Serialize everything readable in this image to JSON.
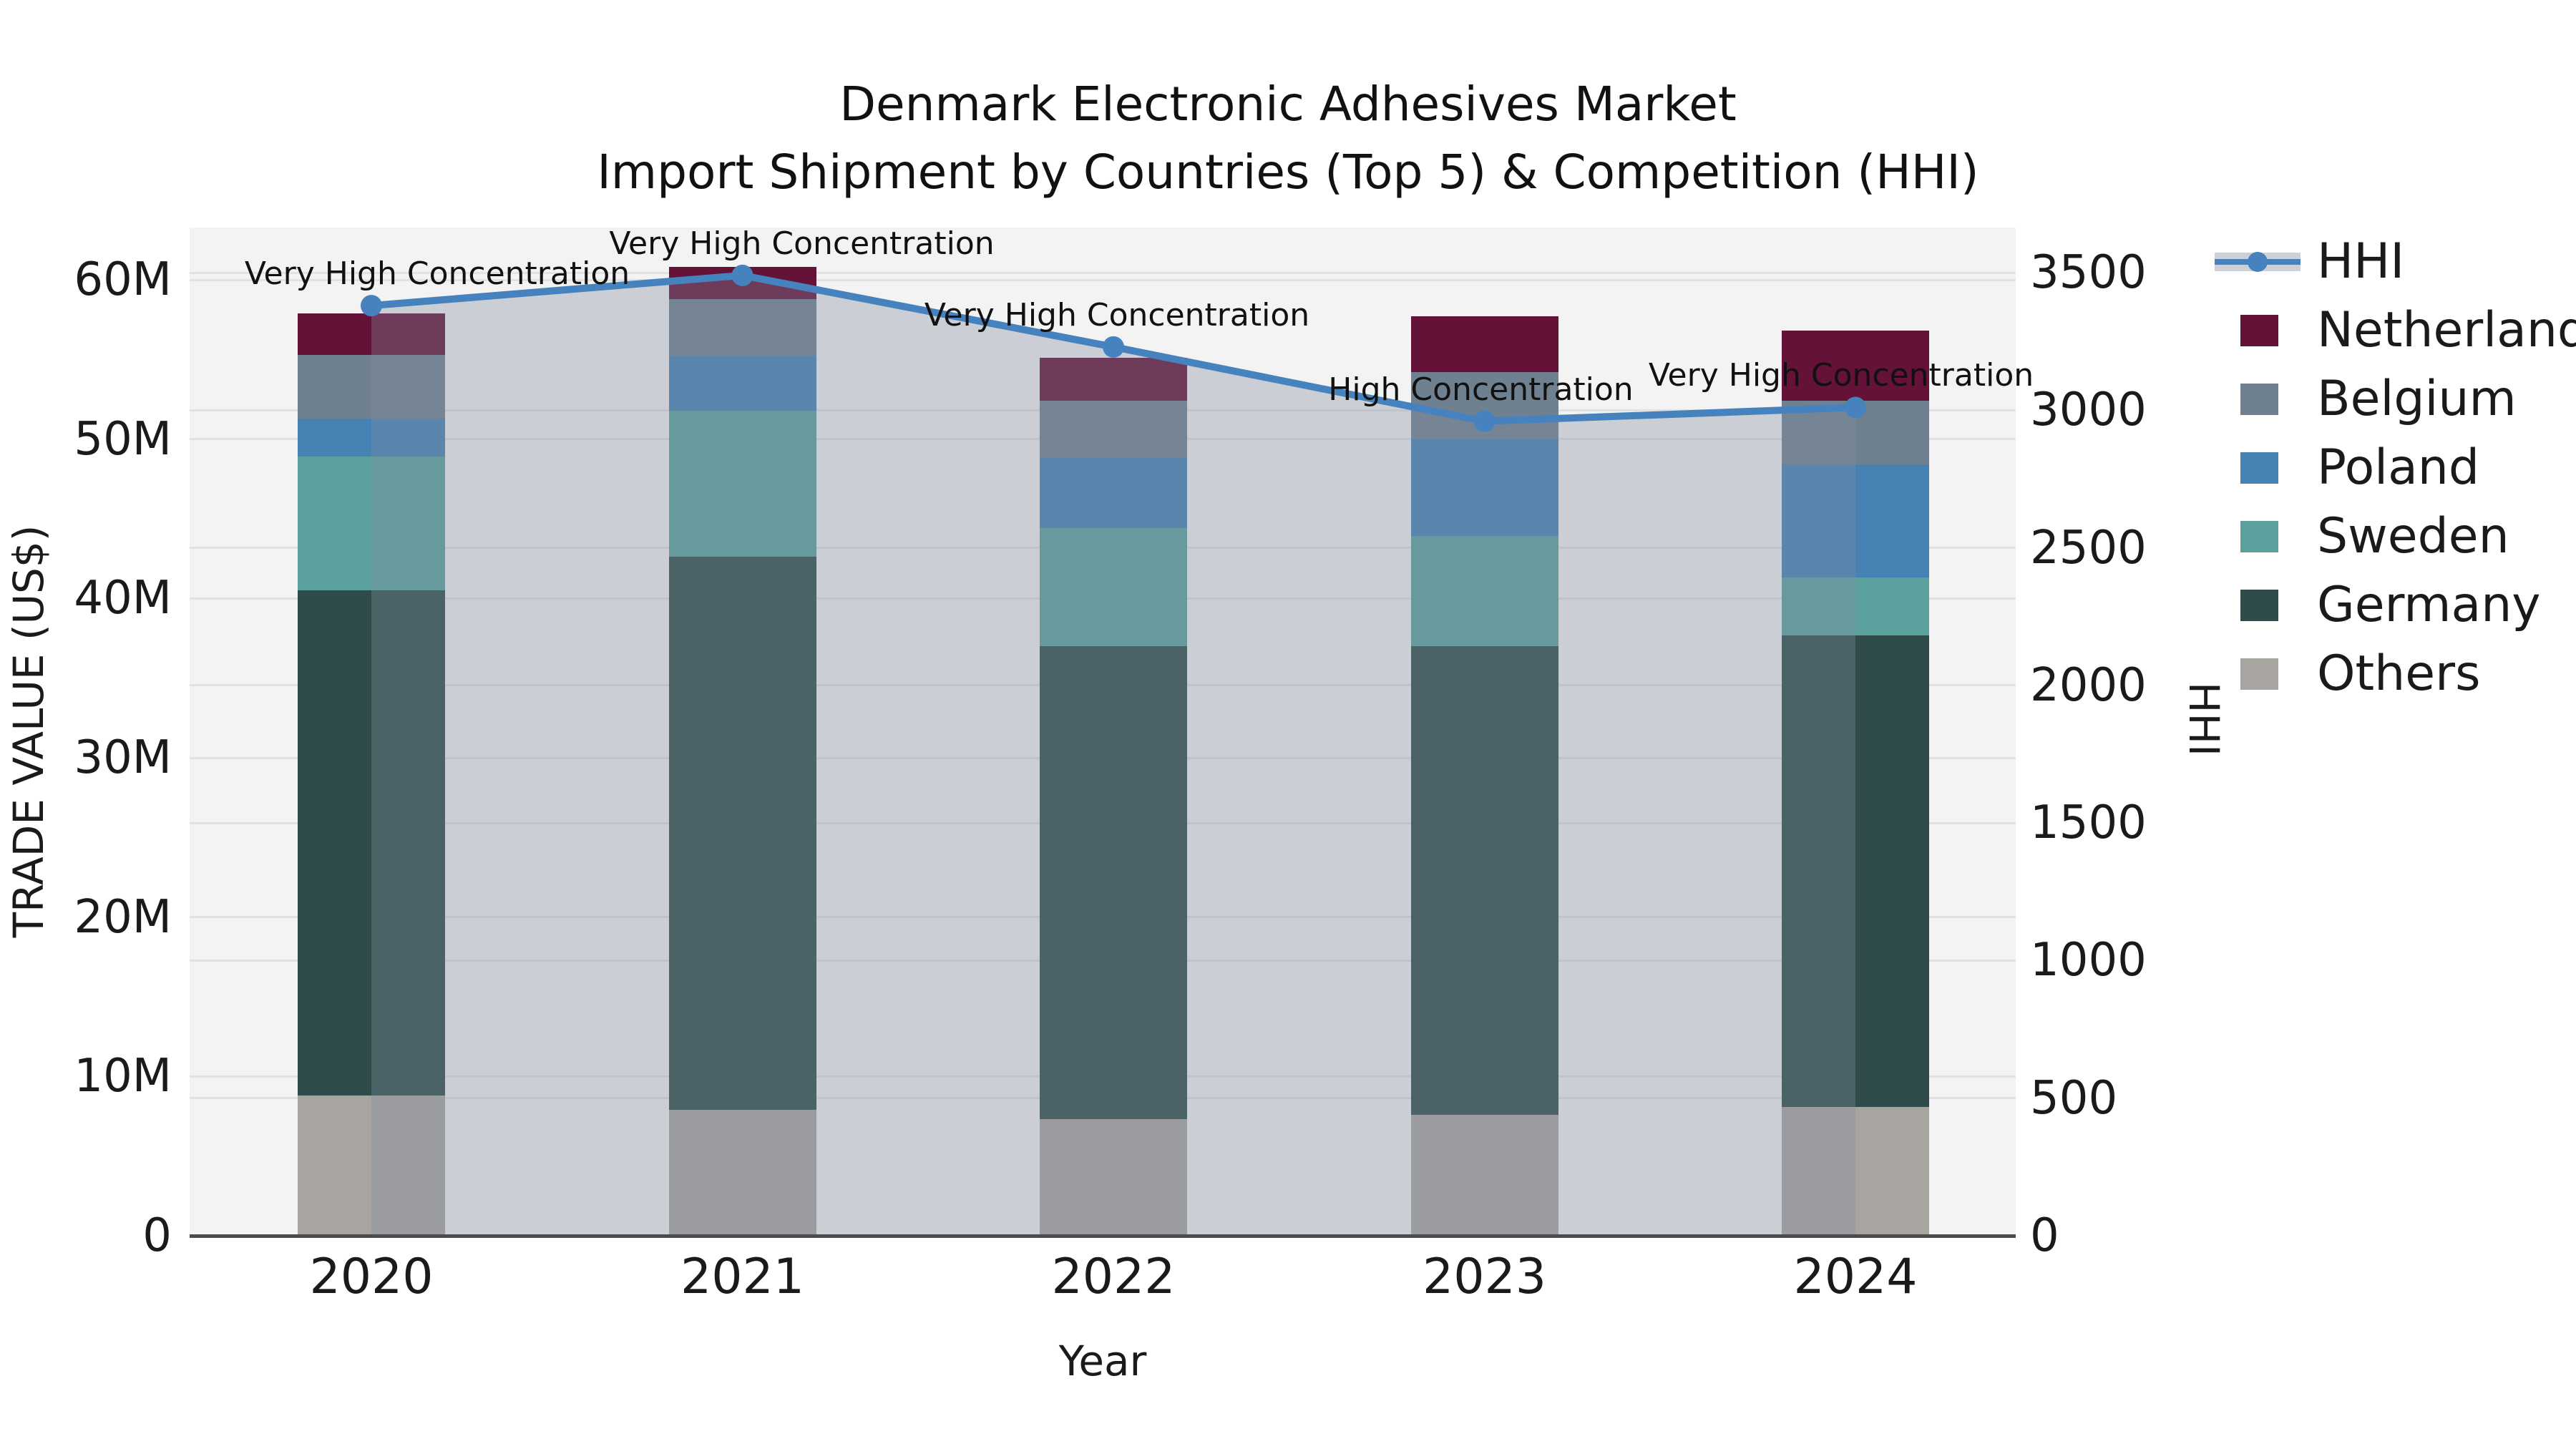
{
  "title": {
    "line1": "Denmark Electronic Adhesives Market",
    "line2": "Import Shipment by Countries (Top 5) & Competition (HHI)"
  },
  "axes": {
    "x": {
      "label": "Year",
      "categories": [
        "2020",
        "2021",
        "2022",
        "2023",
        "2024"
      ]
    },
    "y_left": {
      "label": "TRADE VALUE (US$)",
      "tick_labels": [
        "0",
        "10M",
        "20M",
        "30M",
        "40M",
        "50M",
        "60M"
      ],
      "tick_values": [
        0,
        10,
        20,
        30,
        40,
        50,
        60
      ],
      "max": 60
    },
    "y_right": {
      "label": "HHI",
      "tick_labels": [
        "0",
        "500",
        "1000",
        "1500",
        "2000",
        "2500",
        "3000",
        "3500"
      ],
      "tick_values": [
        0,
        500,
        1000,
        1500,
        2000,
        2500,
        3000,
        3500
      ],
      "max": 3500
    }
  },
  "chart_data": {
    "type": "stacked-bar+line",
    "categories": [
      "2020",
      "2021",
      "2022",
      "2023",
      "2024"
    ],
    "unit": "million US$ (left axis), HHI index (right axis)",
    "series": [
      {
        "name": "Others",
        "color": "#a8a5a1",
        "values": [
          8.8,
          7.9,
          7.3,
          7.6,
          8.1
        ]
      },
      {
        "name": "Germany",
        "color": "#2f4c4a",
        "values": [
          31.7,
          34.7,
          29.7,
          29.4,
          29.6
        ]
      },
      {
        "name": "Sweden",
        "color": "#5aa19d",
        "values": [
          8.4,
          9.2,
          7.4,
          6.9,
          3.6
        ]
      },
      {
        "name": "Poland",
        "color": "#4682b4",
        "values": [
          2.4,
          3.4,
          4.4,
          6.1,
          7.1
        ]
      },
      {
        "name": "Belgium",
        "color": "#6f8191",
        "values": [
          4.0,
          3.6,
          3.6,
          4.2,
          4.0
        ]
      },
      {
        "name": "Netherlands",
        "color": "#641237",
        "values": [
          2.6,
          2.0,
          2.7,
          3.5,
          4.4
        ]
      }
    ],
    "bar_totals": [
      57.9,
      60.8,
      55.1,
      57.7,
      56.8
    ],
    "line": {
      "name": "HHI",
      "color": "#4682bd",
      "area_color": "rgba(128,139,159,0.35)",
      "axis": "right",
      "values": [
        3380,
        3490,
        3230,
        2960,
        3010
      ]
    },
    "annotations": [
      {
        "category": "2020",
        "text": "Very High Concentration"
      },
      {
        "category": "2021",
        "text": "Very High Concentration"
      },
      {
        "category": "2022",
        "text": "Very High Concentration"
      },
      {
        "category": "2023",
        "text": "High Concentration"
      },
      {
        "category": "2024",
        "text": "Very High Concentration"
      }
    ],
    "ylim_left": [
      0,
      60
    ],
    "ylim_right": [
      0,
      3500
    ],
    "grid": true,
    "legend_position": "right"
  },
  "legend": {
    "entries": [
      {
        "label": "HHI",
        "type": "line"
      },
      {
        "label": "Netherlands",
        "type": "patch"
      },
      {
        "label": "Belgium",
        "type": "patch"
      },
      {
        "label": "Poland",
        "type": "patch"
      },
      {
        "label": "Sweden",
        "type": "patch"
      },
      {
        "label": "Germany",
        "type": "patch"
      },
      {
        "label": "Others",
        "type": "patch"
      }
    ]
  }
}
